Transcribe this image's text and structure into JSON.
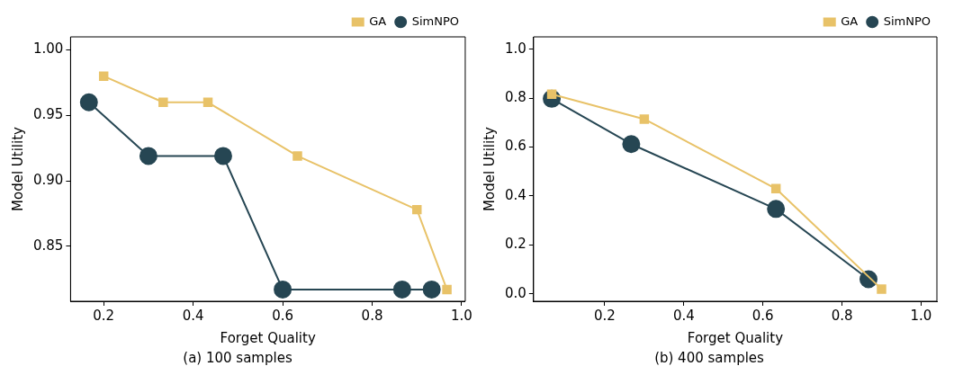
{
  "chart_data": [
    {
      "type": "line",
      "subtitle": "(a) 100 samples",
      "xlabel": "Forget Quality",
      "ylabel": "Model Utility",
      "legend": "top right",
      "grid": false,
      "series": [
        {
          "name": "GA",
          "color": "#e8c268",
          "marker": "square",
          "x": [
            0.2,
            0.333,
            0.433,
            0.633,
            0.9,
            0.967
          ],
          "values": [
            0.98,
            0.96,
            0.96,
            0.919,
            0.878,
            0.817
          ]
        },
        {
          "name": "SimNPO",
          "color": "#264653",
          "marker": "circle",
          "x": [
            0.167,
            0.3,
            0.467,
            0.6,
            0.867,
            0.933
          ],
          "values": [
            0.96,
            0.919,
            0.919,
            0.817,
            0.817,
            0.817
          ]
        }
      ],
      "xlim": [
        0.126,
        1.008
      ],
      "xticks": [
        0.2,
        0.4,
        0.6,
        0.8,
        {
          "value": 1,
          "label": "1.0"
        }
      ],
      "ylim": [
        0.808,
        1.01
      ],
      "yticks": [
        {
          "value": 0.85,
          "label": "0.85"
        },
        {
          "value": 0.9,
          "label": "0.90"
        },
        {
          "value": 0.95,
          "label": "0.95"
        },
        {
          "value": 1,
          "label": "1.00"
        }
      ]
    },
    {
      "type": "line",
      "subtitle": "(b) 400 samples",
      "xlabel": "Forget Quality",
      "ylabel": "Model Utility",
      "legend": "top right",
      "grid": false,
      "series": [
        {
          "name": "GA",
          "color": "#e8c268",
          "marker": "square",
          "x": [
            0.066,
            0.3,
            0.633,
            0.9
          ],
          "values": [
            0.816,
            0.714,
            0.43,
            0.02
          ]
        },
        {
          "name": "SimNPO",
          "color": "#264653",
          "marker": "circle",
          "x": [
            0.066,
            0.267,
            0.633,
            0.867
          ],
          "values": [
            0.797,
            0.612,
            0.347,
            0.06
          ]
        }
      ],
      "xlim": [
        0.02,
        1.04
      ],
      "xticks": [
        0.2,
        0.4,
        0.6,
        0.8,
        {
          "value": 1,
          "label": "1.0"
        }
      ],
      "ylim": [
        -0.03,
        1.05
      ],
      "yticks": [
        {
          "value": 0,
          "label": "0.0"
        },
        0.2,
        0.4,
        0.6,
        0.8,
        {
          "value": 1,
          "label": "1.0"
        }
      ]
    }
  ]
}
